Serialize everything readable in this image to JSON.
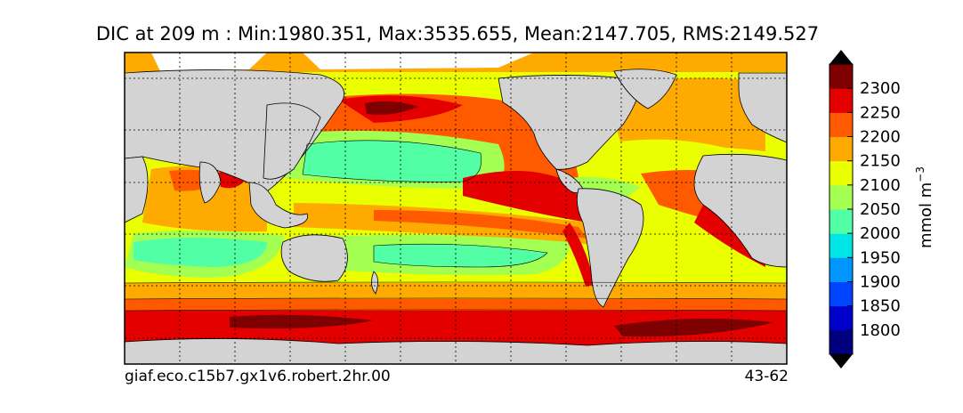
{
  "title": "DIC at 209 m : Min:1980.351, Max:3535.655, Mean:2147.705, RMS:2149.527",
  "footer": {
    "run_name": "giaf.eco.c15b7.gx1v6.robert.2hr.00",
    "years": "43-62"
  },
  "colorbar": {
    "unit_label": "mmol m",
    "unit_exponent": "−3",
    "ticks": [
      "1800",
      "1850",
      "1900",
      "1950",
      "2000",
      "2050",
      "2100",
      "2150",
      "2200",
      "2250",
      "2300"
    ],
    "levels": [
      "#00007f",
      "#0000cd",
      "#0044ff",
      "#0096ff",
      "#00e5e5",
      "#52ffa4",
      "#a3ff52",
      "#eaff00",
      "#ffaa00",
      "#ff5a00",
      "#e50000",
      "#7f0000"
    ]
  },
  "map": {
    "land_color": "#d3d3d3",
    "missing_color": "#ffffff",
    "grid": "dotted",
    "projection": "global longitude-latitude"
  }
}
